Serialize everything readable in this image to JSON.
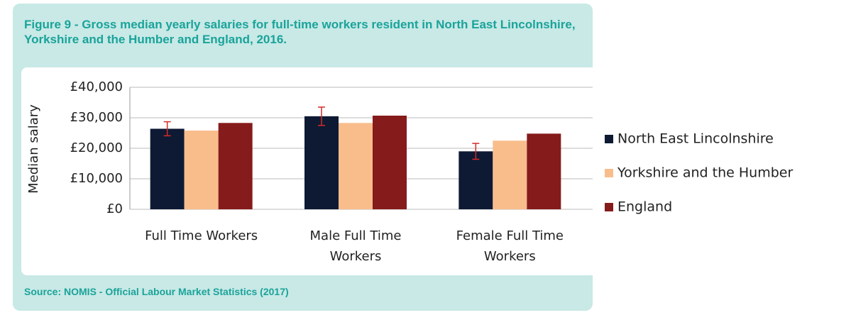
{
  "chart_data": {
    "type": "bar",
    "title": "Figure 9 -  Gross median yearly salaries for full-time workers resident in North East Lincolnshire, Yorkshire and the Humber and England, 2016.",
    "source": "Source:  NOMIS - Official Labour Market Statistics (2017)",
    "y_label": "Median salary",
    "categories": [
      "Full Time Workers",
      "Male Full Time Workers",
      "Female Full Time Workers"
    ],
    "series": [
      {
        "name": "North East Lincolnshire",
        "color": "#0e1a33",
        "values": [
          26400,
          30500,
          19000
        ],
        "errors": [
          2300,
          3000,
          2600
        ],
        "error_color": "#d42a2a"
      },
      {
        "name": "Yorkshire and the Humber",
        "color": "#f9bd8c",
        "values": [
          25800,
          28300,
          22500
        ]
      },
      {
        "name": "England",
        "color": "#861b1b",
        "values": [
          28300,
          30700,
          24800
        ]
      }
    ],
    "ylim": [
      0,
      40000
    ],
    "yticks": [
      {
        "value": 0,
        "label": "£0"
      },
      {
        "value": 10000,
        "label": "£10,000"
      },
      {
        "value": 20000,
        "label": "£20,000"
      },
      {
        "value": 30000,
        "label": "£30,000"
      },
      {
        "value": 40000,
        "label": "£40,000"
      }
    ],
    "grid": true,
    "legend": "right"
  }
}
